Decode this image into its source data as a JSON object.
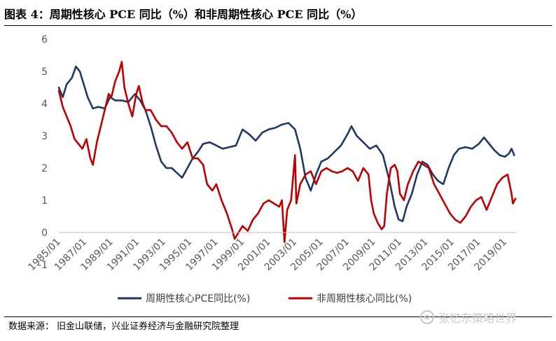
{
  "header": {
    "title": "图表 4：周期性核心 PCE 同比（%）和非周期性核心 PCE 同比（%）"
  },
  "footer": {
    "source": "数据来源： 旧金山联储，兴业证券经济与金融研究院整理"
  },
  "watermark": {
    "text": "张忆东策略世界",
    "icon": "wechat-icon"
  },
  "chart_data": {
    "type": "line",
    "title": "周期性核心PCE同比(%)和非周期性核心PCE同比(%)",
    "xlabel": "",
    "ylabel": "",
    "ylim": [
      -1,
      6
    ],
    "yticks": [
      "-1",
      "0",
      "1",
      "2",
      "3",
      "4",
      "5",
      "6"
    ],
    "xticks": [
      "1985/01",
      "1987/01",
      "1989/01",
      "1991/01",
      "1993/01",
      "1995/01",
      "1997/01",
      "1999/01",
      "2001/01",
      "2003/01",
      "2005/01",
      "2007/01",
      "2009/01",
      "2011/01",
      "2013/01",
      "2015/01",
      "2017/01",
      "2019/01"
    ],
    "grid": false,
    "legend_position": "bottom",
    "series": [
      {
        "name": "周期性核心PCE同比(%)",
        "color": "#1f3864",
        "points": [
          [
            1985.0,
            4.5
          ],
          [
            1985.3,
            4.2
          ],
          [
            1985.6,
            4.6
          ],
          [
            1986.0,
            4.8
          ],
          [
            1986.3,
            5.15
          ],
          [
            1986.6,
            5.0
          ],
          [
            1986.9,
            4.6
          ],
          [
            1987.2,
            4.2
          ],
          [
            1987.6,
            3.85
          ],
          [
            1988.0,
            3.9
          ],
          [
            1988.5,
            3.85
          ],
          [
            1988.9,
            4.2
          ],
          [
            1989.3,
            4.1
          ],
          [
            1989.8,
            4.1
          ],
          [
            1990.3,
            4.05
          ],
          [
            1990.8,
            4.3
          ],
          [
            1991.2,
            4.1
          ],
          [
            1991.6,
            3.8
          ],
          [
            1992.0,
            3.3
          ],
          [
            1992.4,
            2.7
          ],
          [
            1992.8,
            2.2
          ],
          [
            1993.2,
            2.0
          ],
          [
            1993.6,
            2.0
          ],
          [
            1994.0,
            1.85
          ],
          [
            1994.4,
            1.7
          ],
          [
            1994.8,
            2.0
          ],
          [
            1995.2,
            2.3
          ],
          [
            1995.6,
            2.5
          ],
          [
            1996.0,
            2.75
          ],
          [
            1996.5,
            2.8
          ],
          [
            1997.0,
            2.7
          ],
          [
            1997.5,
            2.6
          ],
          [
            1998.0,
            2.65
          ],
          [
            1998.5,
            2.7
          ],
          [
            1999.0,
            3.2
          ],
          [
            1999.5,
            3.05
          ],
          [
            2000.0,
            2.85
          ],
          [
            2000.5,
            3.1
          ],
          [
            2001.0,
            3.2
          ],
          [
            2001.5,
            3.25
          ],
          [
            2002.0,
            3.35
          ],
          [
            2002.5,
            3.4
          ],
          [
            2003.0,
            3.2
          ],
          [
            2003.4,
            2.6
          ],
          [
            2003.8,
            1.7
          ],
          [
            2004.2,
            1.3
          ],
          [
            2004.6,
            1.8
          ],
          [
            2005.0,
            2.2
          ],
          [
            2005.5,
            2.3
          ],
          [
            2006.0,
            2.5
          ],
          [
            2006.5,
            2.7
          ],
          [
            2007.0,
            3.05
          ],
          [
            2007.3,
            3.3
          ],
          [
            2007.7,
            3.0
          ],
          [
            2008.2,
            2.8
          ],
          [
            2008.7,
            2.6
          ],
          [
            2009.2,
            2.7
          ],
          [
            2009.7,
            2.4
          ],
          [
            2010.2,
            1.6
          ],
          [
            2010.6,
            0.8
          ],
          [
            2010.9,
            0.4
          ],
          [
            2011.2,
            0.35
          ],
          [
            2011.5,
            0.8
          ],
          [
            2011.9,
            1.2
          ],
          [
            2012.3,
            1.8
          ],
          [
            2012.7,
            2.2
          ],
          [
            2013.1,
            2.1
          ],
          [
            2013.5,
            1.8
          ],
          [
            2013.9,
            1.6
          ],
          [
            2014.3,
            1.5
          ],
          [
            2014.7,
            2.0
          ],
          [
            2015.1,
            2.4
          ],
          [
            2015.5,
            2.6
          ],
          [
            2016.0,
            2.65
          ],
          [
            2016.5,
            2.6
          ],
          [
            2017.0,
            2.75
          ],
          [
            2017.4,
            2.95
          ],
          [
            2017.8,
            2.75
          ],
          [
            2018.2,
            2.55
          ],
          [
            2018.6,
            2.4
          ],
          [
            2019.0,
            2.35
          ],
          [
            2019.3,
            2.45
          ],
          [
            2019.5,
            2.6
          ],
          [
            2019.7,
            2.4
          ]
        ]
      },
      {
        "name": "非周期性核心同比(%)",
        "color": "#c00000",
        "points": [
          [
            1985.0,
            4.4
          ],
          [
            1985.3,
            3.9
          ],
          [
            1985.6,
            3.6
          ],
          [
            1985.9,
            3.3
          ],
          [
            1986.2,
            2.9
          ],
          [
            1986.5,
            2.75
          ],
          [
            1986.8,
            2.6
          ],
          [
            1987.1,
            2.9
          ],
          [
            1987.4,
            2.3
          ],
          [
            1987.6,
            2.1
          ],
          [
            1987.9,
            2.8
          ],
          [
            1988.2,
            3.3
          ],
          [
            1988.5,
            3.8
          ],
          [
            1988.8,
            4.3
          ],
          [
            1989.0,
            4.2
          ],
          [
            1989.3,
            4.7
          ],
          [
            1989.6,
            5.0
          ],
          [
            1989.8,
            5.3
          ],
          [
            1990.0,
            4.5
          ],
          [
            1990.3,
            4.0
          ],
          [
            1990.6,
            3.6
          ],
          [
            1990.9,
            4.3
          ],
          [
            1991.1,
            4.55
          ],
          [
            1991.4,
            4.0
          ],
          [
            1991.6,
            3.8
          ],
          [
            1992.0,
            3.8
          ],
          [
            1992.4,
            3.5
          ],
          [
            1992.8,
            3.3
          ],
          [
            1993.2,
            3.3
          ],
          [
            1993.6,
            3.1
          ],
          [
            1994.0,
            2.8
          ],
          [
            1994.4,
            2.6
          ],
          [
            1994.8,
            2.8
          ],
          [
            1995.2,
            2.3
          ],
          [
            1995.6,
            2.3
          ],
          [
            1996.0,
            2.1
          ],
          [
            1996.3,
            1.5
          ],
          [
            1996.7,
            1.3
          ],
          [
            1997.0,
            1.5
          ],
          [
            1997.4,
            1.0
          ],
          [
            1997.8,
            0.6
          ],
          [
            1998.2,
            0.1
          ],
          [
            1998.4,
            -0.2
          ],
          [
            1998.7,
            0.0
          ],
          [
            1999.0,
            0.2
          ],
          [
            1999.4,
            0.05
          ],
          [
            1999.8,
            0.4
          ],
          [
            2000.2,
            0.6
          ],
          [
            2000.6,
            0.9
          ],
          [
            2001.0,
            1.0
          ],
          [
            2001.4,
            0.9
          ],
          [
            2001.8,
            0.8
          ],
          [
            2002.0,
            1.0
          ],
          [
            2002.2,
            -0.3
          ],
          [
            2002.4,
            0.7
          ],
          [
            2002.7,
            1.0
          ],
          [
            2003.0,
            2.4
          ],
          [
            2003.1,
            0.9
          ],
          [
            2003.4,
            1.5
          ],
          [
            2003.8,
            1.8
          ],
          [
            2004.2,
            1.9
          ],
          [
            2004.6,
            1.5
          ],
          [
            2005.0,
            1.9
          ],
          [
            2005.4,
            2.0
          ],
          [
            2005.8,
            1.9
          ],
          [
            2006.2,
            1.85
          ],
          [
            2006.6,
            1.9
          ],
          [
            2007.0,
            2.0
          ],
          [
            2007.4,
            1.9
          ],
          [
            2007.8,
            1.6
          ],
          [
            2008.2,
            2.0
          ],
          [
            2008.6,
            1.8
          ],
          [
            2008.8,
            1.0
          ],
          [
            2009.0,
            0.6
          ],
          [
            2009.3,
            0.3
          ],
          [
            2009.6,
            0.1
          ],
          [
            2009.8,
            0.2
          ],
          [
            2010.0,
            1.2
          ],
          [
            2010.3,
            2.0
          ],
          [
            2010.6,
            2.1
          ],
          [
            2010.8,
            1.9
          ],
          [
            2011.0,
            1.2
          ],
          [
            2011.3,
            1.0
          ],
          [
            2011.6,
            1.5
          ],
          [
            2012.0,
            1.9
          ],
          [
            2012.4,
            2.2
          ],
          [
            2012.8,
            2.1
          ],
          [
            2013.2,
            2.0
          ],
          [
            2013.6,
            1.5
          ],
          [
            2014.0,
            1.2
          ],
          [
            2014.4,
            0.9
          ],
          [
            2014.8,
            0.6
          ],
          [
            2015.2,
            0.4
          ],
          [
            2015.6,
            0.3
          ],
          [
            2016.0,
            0.5
          ],
          [
            2016.4,
            0.8
          ],
          [
            2016.8,
            1.0
          ],
          [
            2017.2,
            1.1
          ],
          [
            2017.6,
            0.7
          ],
          [
            2018.0,
            1.1
          ],
          [
            2018.4,
            1.5
          ],
          [
            2018.8,
            1.7
          ],
          [
            2019.2,
            1.8
          ],
          [
            2019.5,
            1.2
          ],
          [
            2019.6,
            0.9
          ],
          [
            2019.8,
            1.05
          ]
        ]
      }
    ]
  }
}
